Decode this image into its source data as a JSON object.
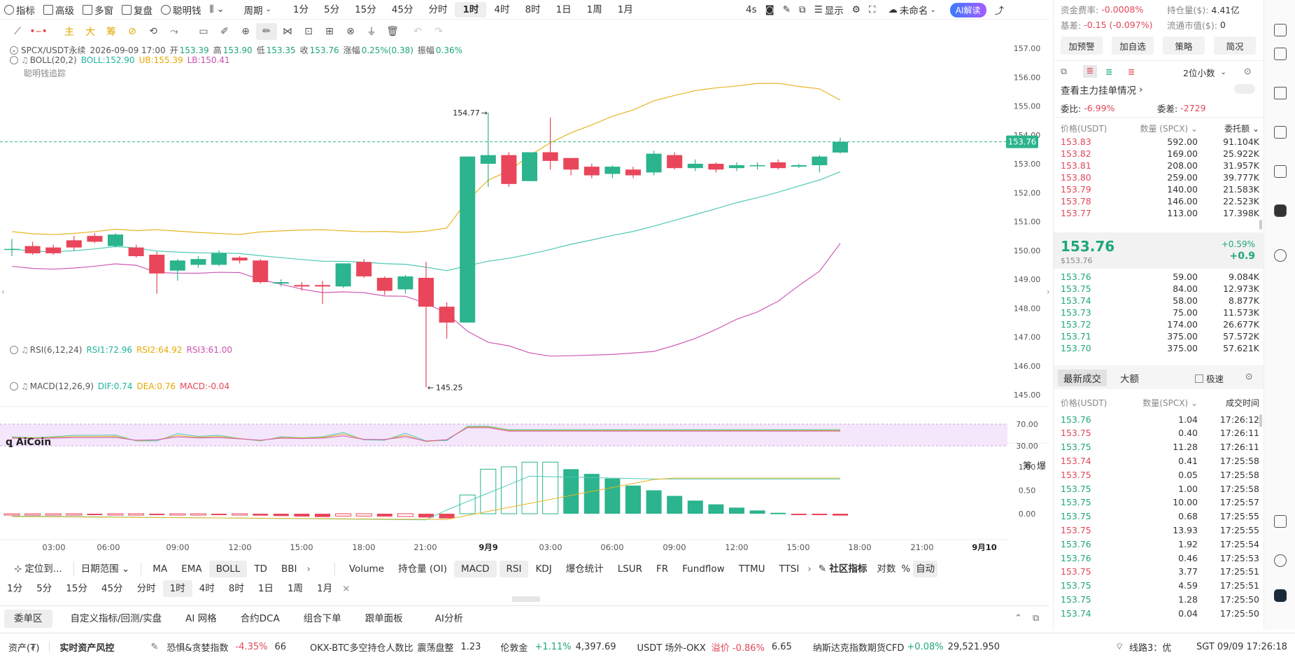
{
  "topbar": {
    "indicator": "指标",
    "advanced": "高级",
    "multi_window": "多窗",
    "replay": "复盘",
    "smart_money": "聪明钱",
    "period": "周期",
    "timeframes": [
      "1分",
      "5分",
      "15分",
      "45分",
      "分时",
      "1时",
      "4时",
      "8时",
      "1日",
      "1周",
      "1月"
    ],
    "active_timeframe": "1时",
    "refresh": "4s",
    "display": "显示",
    "unnamed": "未命名",
    "ai_explain": "AI解读"
  },
  "chart": {
    "symbol": "SPCX/USDT永续",
    "datetime": "2026-09-09 17:00",
    "open_label": "开",
    "open": "153.39",
    "high_label": "高",
    "high": "153.90",
    "low_label": "低",
    "low": "153.35",
    "close_label": "收",
    "close": "153.76",
    "change_label": "涨幅",
    "change": "0.25%(0.38)",
    "amp_label": "振幅",
    "amp": "0.36%",
    "boll_label": "BOLL(20,2)",
    "boll_mid": "BOLL:152.90",
    "boll_ub": "UB:155.39",
    "boll_lb": "LB:150.41",
    "smart_trace": "聪明钱追踪",
    "last_price_tag": "153.76",
    "high_annot": "154.77",
    "low_annot": "145.25",
    "y_ticks": [
      "157.00",
      "156.00",
      "155.00",
      "154.00",
      "153.00",
      "152.00",
      "151.00",
      "150.00",
      "149.00",
      "148.00",
      "147.00",
      "146.00",
      "145.00"
    ],
    "rsi_label": "RSI(6,12,24)",
    "rsi1": "RSI1:72.96",
    "rsi2": "RSI2:64.92",
    "rsi3": "RSI3:61.00",
    "rsi_ticks": [
      "70.00",
      "30.00"
    ],
    "macd_label": "MACD(12,26,9)",
    "dif": "DIF:0.74",
    "dea": "DEA:0.76",
    "macd_val": "MACD:-0.04",
    "macd_ticks": [
      "1.00",
      "0.50",
      "0.00"
    ],
    "x_labels": [
      "03:00",
      "06:00",
      "09:00",
      "12:00",
      "15:00",
      "18:00",
      "21:00",
      "9月9",
      "03:00",
      "06:00",
      "09:00",
      "12:00",
      "15:00",
      "18:00",
      "21:00",
      "9月10"
    ],
    "logo": "AiCoin",
    "right_a": "筹",
    "right_b": "爆"
  },
  "chart_data": {
    "type": "candlestick",
    "title": "SPCX/USDT永续",
    "interval": "1h",
    "candles": [
      [
        150.05,
        150.05,
        150.4,
        149.8
      ],
      [
        150.15,
        149.9,
        150.3,
        149.85
      ],
      [
        150.1,
        149.9,
        150.2,
        149.85
      ],
      [
        150.35,
        150.1,
        150.5,
        150.0
      ],
      [
        150.5,
        150.3,
        150.6,
        150.25
      ],
      [
        150.15,
        150.55,
        150.6,
        150.1
      ],
      [
        150.1,
        149.8,
        150.2,
        149.75
      ],
      [
        149.85,
        149.2,
        149.95,
        148.5
      ],
      [
        149.3,
        149.65,
        149.7,
        148.95
      ],
      [
        149.5,
        149.7,
        149.8,
        149.4
      ],
      [
        149.5,
        149.9,
        150.0,
        149.45
      ],
      [
        149.75,
        149.65,
        149.8,
        149.55
      ],
      [
        149.65,
        148.9,
        149.7,
        148.85
      ],
      [
        148.85,
        148.9,
        149.0,
        148.75
      ],
      [
        148.8,
        148.75,
        148.9,
        148.6
      ],
      [
        148.8,
        148.75,
        148.95,
        148.15
      ],
      [
        148.75,
        149.55,
        149.55,
        148.7
      ],
      [
        149.6,
        149.1,
        149.7,
        149.05
      ],
      [
        149.05,
        148.6,
        149.1,
        148.45
      ],
      [
        148.65,
        149.1,
        149.15,
        148.5
      ],
      [
        149.05,
        148.05,
        149.6,
        145.25
      ],
      [
        148.05,
        147.5,
        148.2,
        146.95
      ],
      [
        147.5,
        153.25,
        153.25,
        147.5
      ],
      [
        153.0,
        153.3,
        154.77,
        152.2
      ],
      [
        153.3,
        152.3,
        153.4,
        152.2
      ],
      [
        152.4,
        153.4,
        153.4,
        152.4
      ],
      [
        153.4,
        153.1,
        154.6,
        152.8
      ],
      [
        153.2,
        152.8,
        153.2,
        152.6
      ],
      [
        152.9,
        152.6,
        153.0,
        152.5
      ],
      [
        152.65,
        152.9,
        152.95,
        152.5
      ],
      [
        152.8,
        152.6,
        152.9,
        152.5
      ],
      [
        152.7,
        153.35,
        153.45,
        152.6
      ],
      [
        153.3,
        152.85,
        153.4,
        152.8
      ],
      [
        152.85,
        153.0,
        153.15,
        152.75
      ],
      [
        153.0,
        152.8,
        153.05,
        152.7
      ],
      [
        152.85,
        152.95,
        153.05,
        152.75
      ],
      [
        152.95,
        152.95,
        153.05,
        152.8
      ],
      [
        153.05,
        152.85,
        153.15,
        152.8
      ],
      [
        152.9,
        152.95,
        153.0,
        152.85
      ],
      [
        152.95,
        153.25,
        153.3,
        152.7
      ],
      [
        153.39,
        153.76,
        153.9,
        153.35
      ]
    ],
    "boll": {
      "mid": "152.90",
      "ub": "155.39",
      "lb": "150.41"
    },
    "y_range": [
      145.0,
      157.0
    ],
    "rsi": {
      "rsi1": 72.96,
      "rsi2": 64.92,
      "rsi3": 61.0
    },
    "macd": {
      "dif": 0.74,
      "dea": 0.76,
      "macd": -0.04,
      "hist": [
        -0.02,
        -0.02,
        -0.02,
        -0.02,
        -0.03,
        -0.02,
        -0.02,
        -0.03,
        -0.03,
        -0.02,
        -0.03,
        -0.03,
        -0.04,
        -0.05,
        -0.06,
        -0.07,
        -0.05,
        -0.05,
        -0.06,
        -0.06,
        -0.08,
        -0.1,
        0.4,
        0.95,
        1.0,
        1.1,
        1.1,
        0.95,
        0.85,
        0.75,
        0.6,
        0.5,
        0.38,
        0.28,
        0.2,
        0.13,
        0.07,
        0.02,
        -0.02,
        -0.03,
        -0.04
      ]
    }
  },
  "indicators_row": {
    "locate": "定位到...",
    "date_range": "日期范围",
    "items": [
      "MA",
      "EMA",
      "BOLL",
      "TD",
      "BBI"
    ],
    "active": "BOLL",
    "sub_items": [
      "Volume",
      "持仓量 (OI)",
      "MACD",
      "RSI",
      "KDJ",
      "爆仓统计",
      "LSUR",
      "FR",
      "Fundflow",
      "TTMU",
      "TTSI"
    ],
    "community": "社区指标",
    "log": "对数",
    "percent": "%",
    "auto": "自动"
  },
  "tf_row": [
    "1分",
    "5分",
    "15分",
    "45分",
    "分时",
    "1时",
    "4时",
    "8时",
    "1日",
    "1周",
    "1月"
  ],
  "bottom_tabs": [
    "委单区",
    "自定义指标/回测/实盘",
    "AI 网格",
    "合约DCA",
    "组合下单",
    "跟单面板",
    "AI分析"
  ],
  "right": {
    "funding_label": "资金费率:",
    "funding": "-0.0008%",
    "oi_label": "持仓量($):",
    "oi": "4.41亿",
    "basis_label": "基差:",
    "basis": "-0.15 (-0.097%)",
    "mcap_label": "流通市值($):",
    "mcap": "0",
    "btns": [
      "加预警",
      "加自选",
      "策略",
      "简况"
    ],
    "decimals": "2位小数",
    "main_orders": "查看主力挂单情况",
    "wb_label": "委比:",
    "wb": "-6.99%",
    "wc_label": "委差:",
    "wc": "-2729",
    "ob_headers": [
      "价格(USDT)",
      "数量 (SPCX)",
      "委托额"
    ],
    "asks": [
      [
        "153.83",
        "592.00",
        "91.104K"
      ],
      [
        "153.82",
        "169.00",
        "25.922K"
      ],
      [
        "153.81",
        "208.00",
        "31.957K"
      ],
      [
        "153.80",
        "259.00",
        "39.777K"
      ],
      [
        "153.79",
        "140.00",
        "21.583K"
      ],
      [
        "153.78",
        "146.00",
        "22.523K"
      ],
      [
        "153.77",
        "113.00",
        "17.398K"
      ]
    ],
    "mid_price": "153.76",
    "mid_sub": "$153.76",
    "mid_pct": "+0.59%",
    "mid_abs": "+0.9",
    "bids": [
      [
        "153.76",
        "59.00",
        "9.084K"
      ],
      [
        "153.75",
        "84.00",
        "12.973K"
      ],
      [
        "153.74",
        "58.00",
        "8.877K"
      ],
      [
        "153.73",
        "75.00",
        "11.573K"
      ],
      [
        "153.72",
        "174.00",
        "26.677K"
      ],
      [
        "153.71",
        "375.00",
        "57.572K"
      ],
      [
        "153.70",
        "375.00",
        "57.621K"
      ]
    ],
    "trade_tab1": "最新成交",
    "trade_tab2": "大额",
    "fast": "极速",
    "trade_headers": [
      "价格(USDT)",
      "数量(SPCX)",
      "成交时间"
    ],
    "trades": [
      [
        "153.76",
        "1.04",
        "17:26:12",
        "g"
      ],
      [
        "153.75",
        "0.40",
        "17:26:11",
        "r"
      ],
      [
        "153.75",
        "11.28",
        "17:26:11",
        "g"
      ],
      [
        "153.74",
        "0.41",
        "17:25:58",
        "r"
      ],
      [
        "153.75",
        "0.05",
        "17:25:58",
        "r"
      ],
      [
        "153.75",
        "1.00",
        "17:25:58",
        "g"
      ],
      [
        "153.75",
        "10.00",
        "17:25:57",
        "g"
      ],
      [
        "153.75",
        "0.68",
        "17:25:55",
        "g"
      ],
      [
        "153.75",
        "13.93",
        "17:25:55",
        "r"
      ],
      [
        "153.76",
        "1.92",
        "17:25:54",
        "g"
      ],
      [
        "153.76",
        "0.46",
        "17:25:53",
        "g"
      ],
      [
        "153.75",
        "3.77",
        "17:25:51",
        "r"
      ],
      [
        "153.75",
        "4.59",
        "17:25:51",
        "g"
      ],
      [
        "153.75",
        "1.28",
        "17:25:50",
        "g"
      ],
      [
        "153.74",
        "0.04",
        "17:25:50",
        "g"
      ]
    ]
  },
  "status": {
    "assets": "资产(₮)",
    "risk": "实时资产风控",
    "fear_label": "恐惧&贪婪指数",
    "fear_pct": "-4.35%",
    "fear_val": "66",
    "okx_label": "OKX-BTC多空持仓人数比",
    "okx_state": "震荡盘整",
    "okx_val": "1.23",
    "gold_label": "伦敦金",
    "gold_pct": "+1.11%",
    "gold_val": "4,397.69",
    "usdt_label": "USDT 场外-OKX",
    "usdt_prem": "溢价 -0.86%",
    "usdt_val": "6.65",
    "nasdaq_label": "纳斯达克指数期货CFD",
    "nasdaq_pct": "+0.08%",
    "nasdaq_val": "29,521.950",
    "line": "线路3：优",
    "time": "SGT 09/09 17:26:18"
  }
}
